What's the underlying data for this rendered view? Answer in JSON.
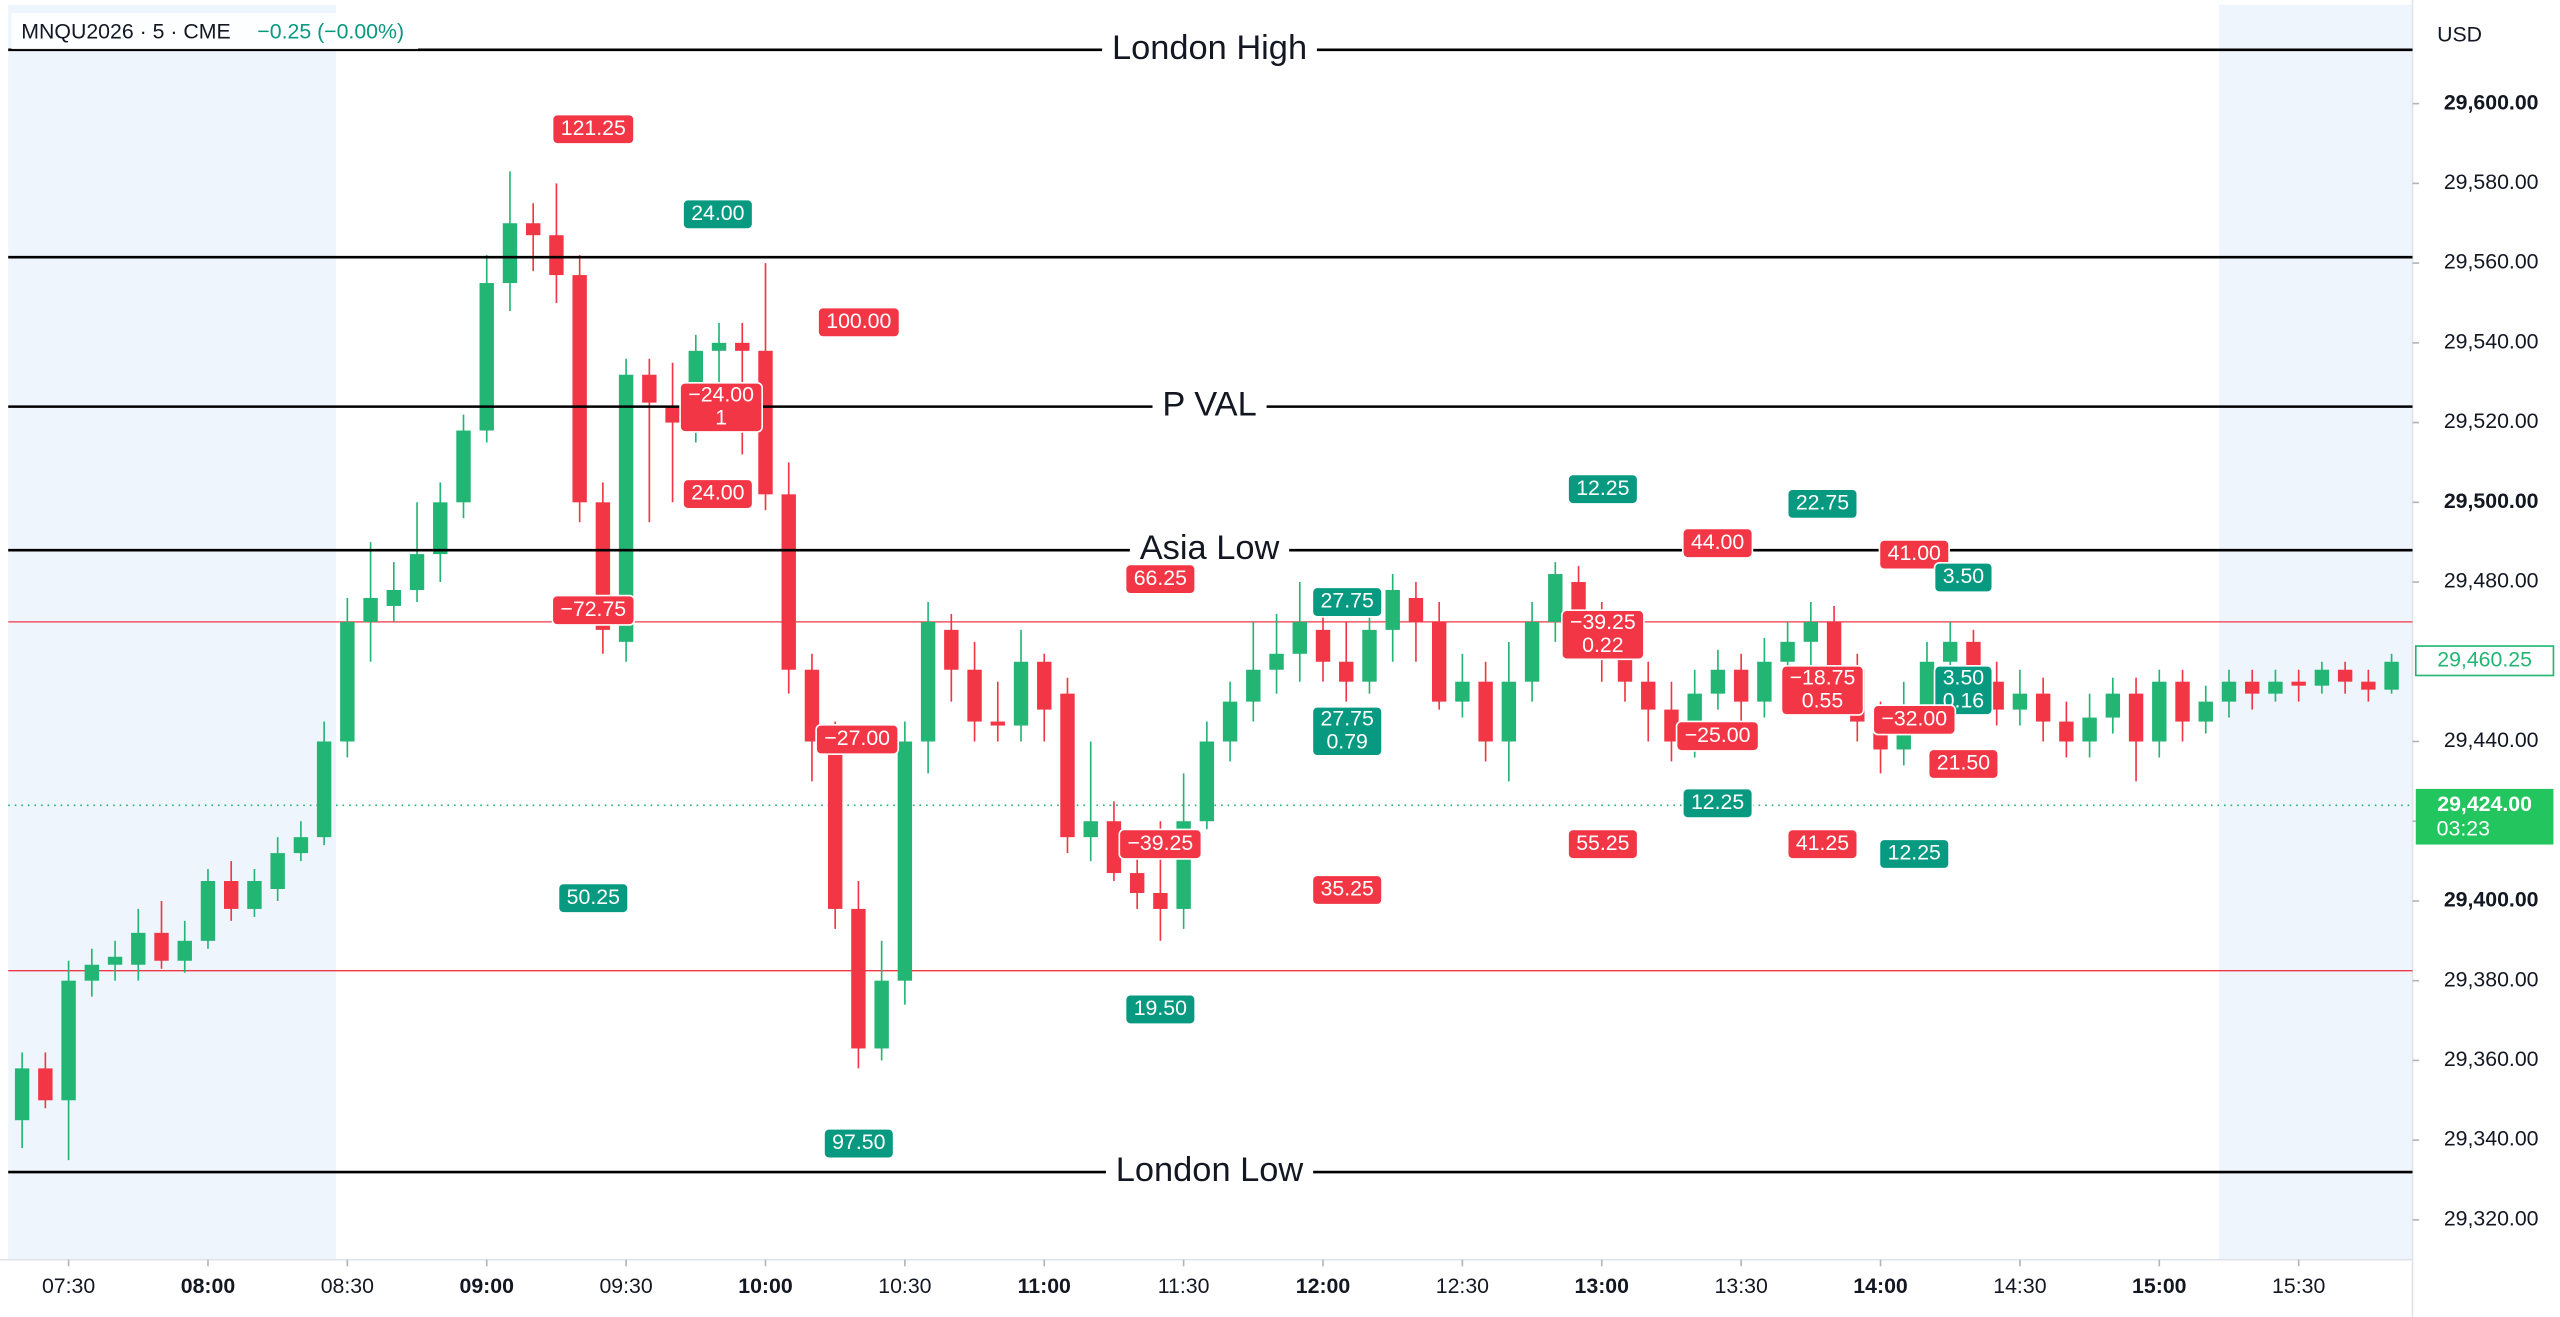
{
  "header": {
    "symbol": "MNQU2026 · 5 · CME",
    "change": "−0.25 (−0.00%)",
    "currency": "USD"
  },
  "chart_data": {
    "type": "candlestick",
    "candles": [
      [
        29345,
        29362,
        29338,
        29358
      ],
      [
        29358,
        29362,
        29348,
        29350
      ],
      [
        29350,
        29385,
        29335,
        29380
      ],
      [
        29380,
        29388,
        29376,
        29384
      ],
      [
        29384,
        29390,
        29380,
        29386
      ],
      [
        29384,
        29398,
        29380,
        29392
      ],
      [
        29392,
        29400,
        29383,
        29385
      ],
      [
        29385,
        29395,
        29382,
        29390
      ],
      [
        29390,
        29408,
        29388,
        29405
      ],
      [
        29405,
        29410,
        29395,
        29398
      ],
      [
        29398,
        29408,
        29396,
        29405
      ],
      [
        29403,
        29416,
        29400,
        29412
      ],
      [
        29412,
        29420,
        29410,
        29416
      ],
      [
        29416,
        29445,
        29414,
        29440
      ],
      [
        29440,
        29476,
        29436,
        29470
      ],
      [
        29470,
        29490,
        29460,
        29476
      ],
      [
        29474,
        29485,
        29470,
        29478
      ],
      [
        29478,
        29500,
        29475,
        29487
      ],
      [
        29487,
        29505,
        29480,
        29500
      ],
      [
        29500,
        29522,
        29496,
        29518
      ],
      [
        29518,
        29562,
        29515,
        29555
      ],
      [
        29555,
        29583,
        29548,
        29570
      ],
      [
        29570,
        29575,
        29558,
        29567
      ],
      [
        29567,
        29580,
        29550,
        29557
      ],
      [
        29557,
        29562,
        29495,
        29500
      ],
      [
        29500,
        29505,
        29462,
        29468
      ],
      [
        29465,
        29536,
        29460,
        29532
      ],
      [
        29532,
        29536,
        29495,
        29525
      ],
      [
        29524,
        29535,
        29500,
        29520
      ],
      [
        29520,
        29542,
        29515,
        29538
      ],
      [
        29538,
        29545,
        29530,
        29540
      ],
      [
        29540,
        29545,
        29512,
        29538
      ],
      [
        29538,
        29560,
        29498,
        29502
      ],
      [
        29502,
        29510,
        29452,
        29458
      ],
      [
        29458,
        29462,
        29430,
        29440
      ],
      [
        29440,
        29445,
        29393,
        29398
      ],
      [
        29398,
        29405,
        29358,
        29363
      ],
      [
        29363,
        29390,
        29360,
        29380
      ],
      [
        29380,
        29445,
        29374,
        29440
      ],
      [
        29440,
        29475,
        29432,
        29470
      ],
      [
        29468,
        29472,
        29450,
        29458
      ],
      [
        29458,
        29465,
        29440,
        29445
      ],
      [
        29445,
        29455,
        29440,
        29444
      ],
      [
        29444,
        29468,
        29440,
        29460
      ],
      [
        29460,
        29462,
        29440,
        29448
      ],
      [
        29452,
        29456,
        29412,
        29416
      ],
      [
        29416,
        29440,
        29410,
        29420
      ],
      [
        29420,
        29425,
        29405,
        29407
      ],
      [
        29407,
        29412,
        29398,
        29402
      ],
      [
        29402,
        29420,
        29390,
        29398
      ],
      [
        29398,
        29432,
        29393,
        29420
      ],
      [
        29420,
        29445,
        29418,
        29440
      ],
      [
        29440,
        29455,
        29435,
        29450
      ],
      [
        29450,
        29470,
        29445,
        29458
      ],
      [
        29458,
        29472,
        29452,
        29462
      ],
      [
        29462,
        29480,
        29455,
        29470
      ],
      [
        29468,
        29475,
        29455,
        29460
      ],
      [
        29460,
        29470,
        29450,
        29455
      ],
      [
        29455,
        29475,
        29452,
        29468
      ],
      [
        29468,
        29482,
        29460,
        29478
      ],
      [
        29476,
        29480,
        29460,
        29470
      ],
      [
        29470,
        29475,
        29448,
        29450
      ],
      [
        29450,
        29462,
        29446,
        29455
      ],
      [
        29455,
        29460,
        29435,
        29440
      ],
      [
        29440,
        29465,
        29430,
        29455
      ],
      [
        29455,
        29475,
        29450,
        29470
      ],
      [
        29470,
        29485,
        29465,
        29482
      ],
      [
        29480,
        29484,
        29465,
        29470
      ],
      [
        29470,
        29475,
        29455,
        29462
      ],
      [
        29462,
        29468,
        29450,
        29455
      ],
      [
        29455,
        29460,
        29440,
        29448
      ],
      [
        29448,
        29455,
        29435,
        29440
      ],
      [
        29440,
        29458,
        29436,
        29452
      ],
      [
        29452,
        29463,
        29448,
        29458
      ],
      [
        29458,
        29462,
        29445,
        29450
      ],
      [
        29450,
        29466,
        29446,
        29460
      ],
      [
        29460,
        29470,
        29455,
        29465
      ],
      [
        29465,
        29475,
        29458,
        29470
      ],
      [
        29470,
        29474,
        29452,
        29458
      ],
      [
        29458,
        29462,
        29440,
        29445
      ],
      [
        29445,
        29450,
        29432,
        29438
      ],
      [
        29438,
        29455,
        29434,
        29448
      ],
      [
        29448,
        29465,
        29445,
        29460
      ],
      [
        29460,
        29470,
        29455,
        29465
      ],
      [
        29465,
        29468,
        29450,
        29455
      ],
      [
        29455,
        29460,
        29444,
        29448
      ],
      [
        29448,
        29458,
        29444,
        29452
      ],
      [
        29452,
        29456,
        29440,
        29445
      ],
      [
        29445,
        29450,
        29436,
        29440
      ],
      [
        29440,
        29452,
        29436,
        29446
      ],
      [
        29446,
        29456,
        29442,
        29452
      ],
      [
        29452,
        29456,
        29430,
        29440
      ],
      [
        29440,
        29458,
        29436,
        29455
      ],
      [
        29455,
        29458,
        29440,
        29445
      ],
      [
        29445,
        29454,
        29442,
        29450
      ],
      [
        29450,
        29458,
        29446,
        29455
      ],
      [
        29455,
        29458,
        29448,
        29452
      ],
      [
        29452,
        29458,
        29450,
        29455
      ],
      [
        29455,
        29458,
        29450,
        29454
      ],
      [
        29454,
        29460,
        29452,
        29458
      ],
      [
        29458,
        29460,
        29452,
        29455
      ],
      [
        29455,
        29458,
        29450,
        29453
      ],
      [
        29453,
        29462,
        29452,
        29460
      ]
    ],
    "colors": {
      "up": "#22b573",
      "down": "#f23645",
      "profit": "#089981",
      "loss": "#f23645",
      "level": "#000000",
      "ref": "#f23645"
    },
    "xlim": [
      -0.6,
      102.9
    ],
    "ylim": [
      29310,
      29626
    ],
    "yticks": [
      {
        "value": 29320,
        "label": "29,320.00"
      },
      {
        "value": 29340,
        "label": "29,340.00"
      },
      {
        "value": 29360,
        "label": "29,360.00"
      },
      {
        "value": 29380,
        "label": "29,380.00"
      },
      {
        "value": 29400,
        "label": "29,400.00"
      },
      {
        "value": 29420,
        "label": "29,420.00"
      },
      {
        "value": 29440,
        "label": "29,440.00"
      },
      {
        "value": 29480,
        "label": "29,480.00"
      },
      {
        "value": 29500,
        "label": "29,500.00"
      },
      {
        "value": 29520,
        "label": "29,520.00"
      },
      {
        "value": 29540,
        "label": "29,540.00"
      },
      {
        "value": 29560,
        "label": "29,560.00"
      },
      {
        "value": 29580,
        "label": "29,580.00"
      },
      {
        "value": 29600,
        "label": "29,600.00"
      }
    ],
    "xticks": [
      {
        "value": 2,
        "label": "07:30"
      },
      {
        "value": 8,
        "label": "08:00"
      },
      {
        "value": 14,
        "label": "08:30"
      },
      {
        "value": 20,
        "label": "09:00"
      },
      {
        "value": 26,
        "label": "09:30"
      },
      {
        "value": 32,
        "label": "10:00"
      },
      {
        "value": 38,
        "label": "10:30"
      },
      {
        "value": 44,
        "label": "11:00"
      },
      {
        "value": 50,
        "label": "11:30"
      },
      {
        "value": 56,
        "label": "12:00"
      },
      {
        "value": 62,
        "label": "12:30"
      },
      {
        "value": 68,
        "label": "13:00"
      },
      {
        "value": 74,
        "label": "13:30"
      },
      {
        "value": 80,
        "label": "14:00"
      },
      {
        "value": 86,
        "label": "14:30"
      },
      {
        "value": 92,
        "label": "15:00"
      },
      {
        "value": 98,
        "label": "15:30"
      }
    ],
    "levels": [
      {
        "value": 29613.5,
        "label": "London High"
      },
      {
        "value": 29561.5
      },
      {
        "value": 29524,
        "label": "P VAL"
      },
      {
        "value": 29488,
        "label": "Asia Low"
      },
      {
        "value": 29332,
        "label": "London Low"
      }
    ],
    "ref_lines": [
      29470,
      29382.5
    ],
    "price_labels": [
      {
        "value": 29460.25,
        "label": "29,460.25"
      },
      {
        "value": 29424,
        "label": "29,424.00",
        "countdown": "03:23"
      }
    ],
    "annotations": [
      {
        "text": "121.25",
        "side": "loss"
      },
      {
        "text": "24.00",
        "side": "profit"
      },
      {
        "text": "100.00",
        "side": "loss"
      },
      {
        "text": "−24.00",
        "sub": "1",
        "side": "loss"
      },
      {
        "text": "24.00",
        "side": "loss"
      },
      {
        "text": "−72.75",
        "side": "loss"
      },
      {
        "text": "50.25",
        "side": "profit"
      },
      {
        "text": "−27.00",
        "side": "loss"
      },
      {
        "text": "97.50",
        "side": "profit"
      },
      {
        "text": "66.25",
        "side": "loss"
      },
      {
        "text": "−39.25",
        "side": "loss"
      },
      {
        "text": "19.50",
        "side": "profit"
      },
      {
        "text": "27.75",
        "side": "profit"
      },
      {
        "text": "27.75",
        "sub": "0.79",
        "side": "profit"
      },
      {
        "text": "35.25",
        "side": "loss"
      },
      {
        "text": "12.25",
        "side": "profit"
      },
      {
        "text": "−39.25",
        "sub": "0.22",
        "side": "loss"
      },
      {
        "text": "55.25",
        "side": "loss"
      },
      {
        "text": "44.00",
        "side": "loss"
      },
      {
        "text": "−25.00",
        "side": "loss"
      },
      {
        "text": "12.25",
        "side": "profit"
      },
      {
        "text": "22.75",
        "side": "profit"
      },
      {
        "text": "−18.75",
        "sub": "0.55",
        "side": "loss"
      },
      {
        "text": "41.25",
        "side": "loss"
      },
      {
        "text": "41.00",
        "side": "loss"
      },
      {
        "text": "3.50",
        "side": "profit"
      },
      {
        "text": "3.50",
        "sub": "0.16",
        "side": "profit"
      },
      {
        "text": "−32.00",
        "side": "loss"
      },
      {
        "text": "21.50",
        "side": "loss"
      },
      {
        "text": "12.25",
        "side": "profit"
      }
    ]
  }
}
